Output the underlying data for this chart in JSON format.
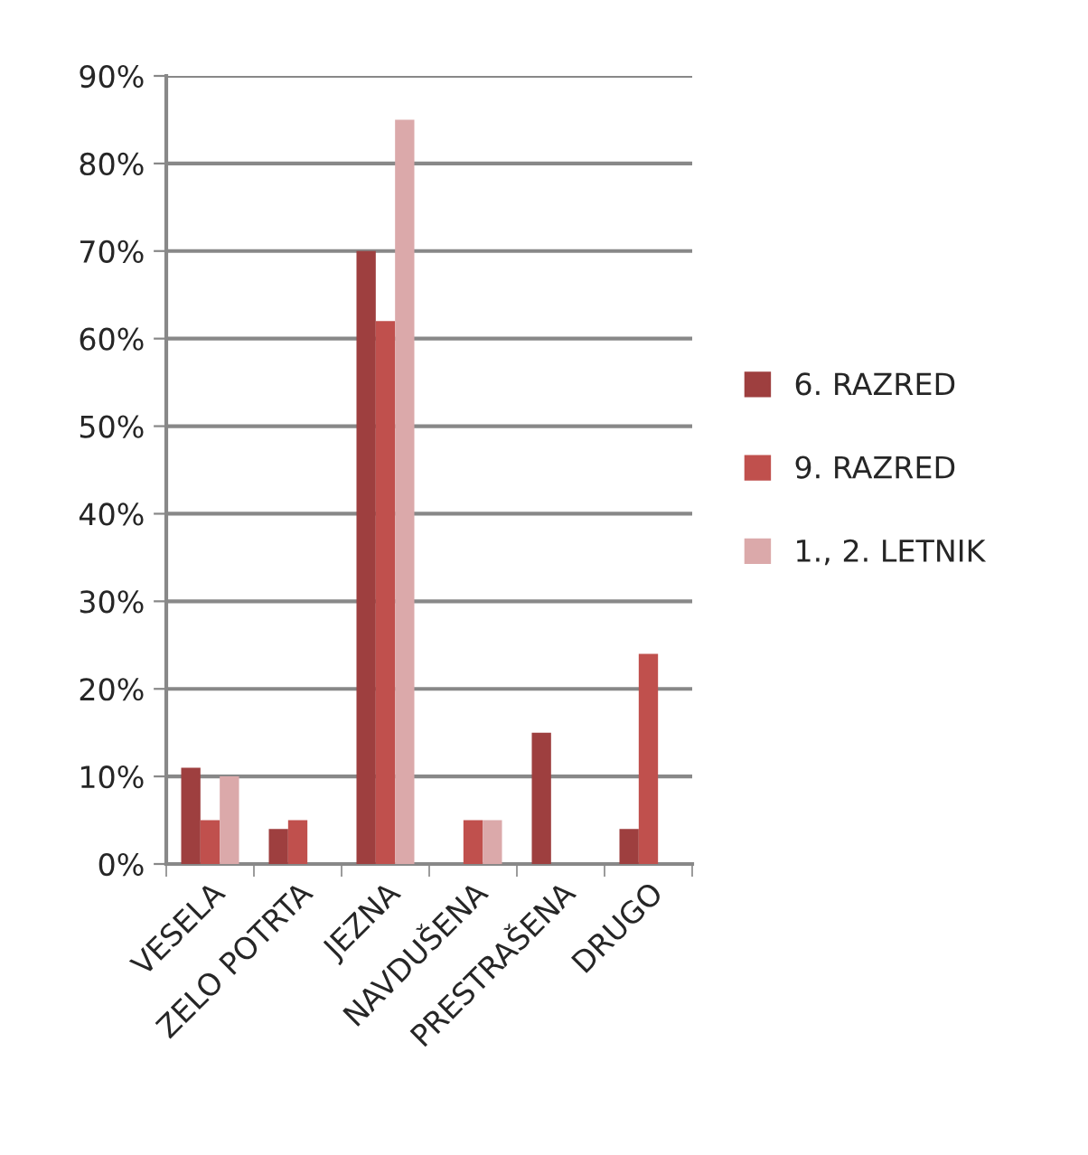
{
  "chart_data": {
    "type": "bar",
    "categories": [
      "VESELA",
      "ZELO POTRTA",
      "JEZNA",
      "NAVDUŠENA",
      "PRESTRAŠENA",
      "DRUGO"
    ],
    "series": [
      {
        "name": "6. RAZRED",
        "color": "#9e3f3f",
        "values": [
          11,
          4,
          70,
          0,
          15,
          4
        ]
      },
      {
        "name": "9. RAZRED",
        "color": "#c0504d",
        "values": [
          5,
          5,
          62,
          5,
          0,
          24
        ]
      },
      {
        "name": "1., 2. LETNIK",
        "color": "#dba9aa",
        "values": [
          10,
          0,
          85,
          5,
          0,
          0
        ]
      }
    ],
    "ylim": [
      0,
      90
    ],
    "yticks": [
      {
        "value": 0,
        "label": "0%"
      },
      {
        "value": 10,
        "label": "10%"
      },
      {
        "value": 20,
        "label": "20%"
      },
      {
        "value": 30,
        "label": "30%"
      },
      {
        "value": 40,
        "label": "40%"
      },
      {
        "value": 50,
        "label": "50%"
      },
      {
        "value": 60,
        "label": "60%"
      },
      {
        "value": 70,
        "label": "70%"
      },
      {
        "value": 80,
        "label": "80%"
      },
      {
        "value": 90,
        "label": "90%"
      }
    ],
    "grid": "y",
    "legend": "right"
  }
}
